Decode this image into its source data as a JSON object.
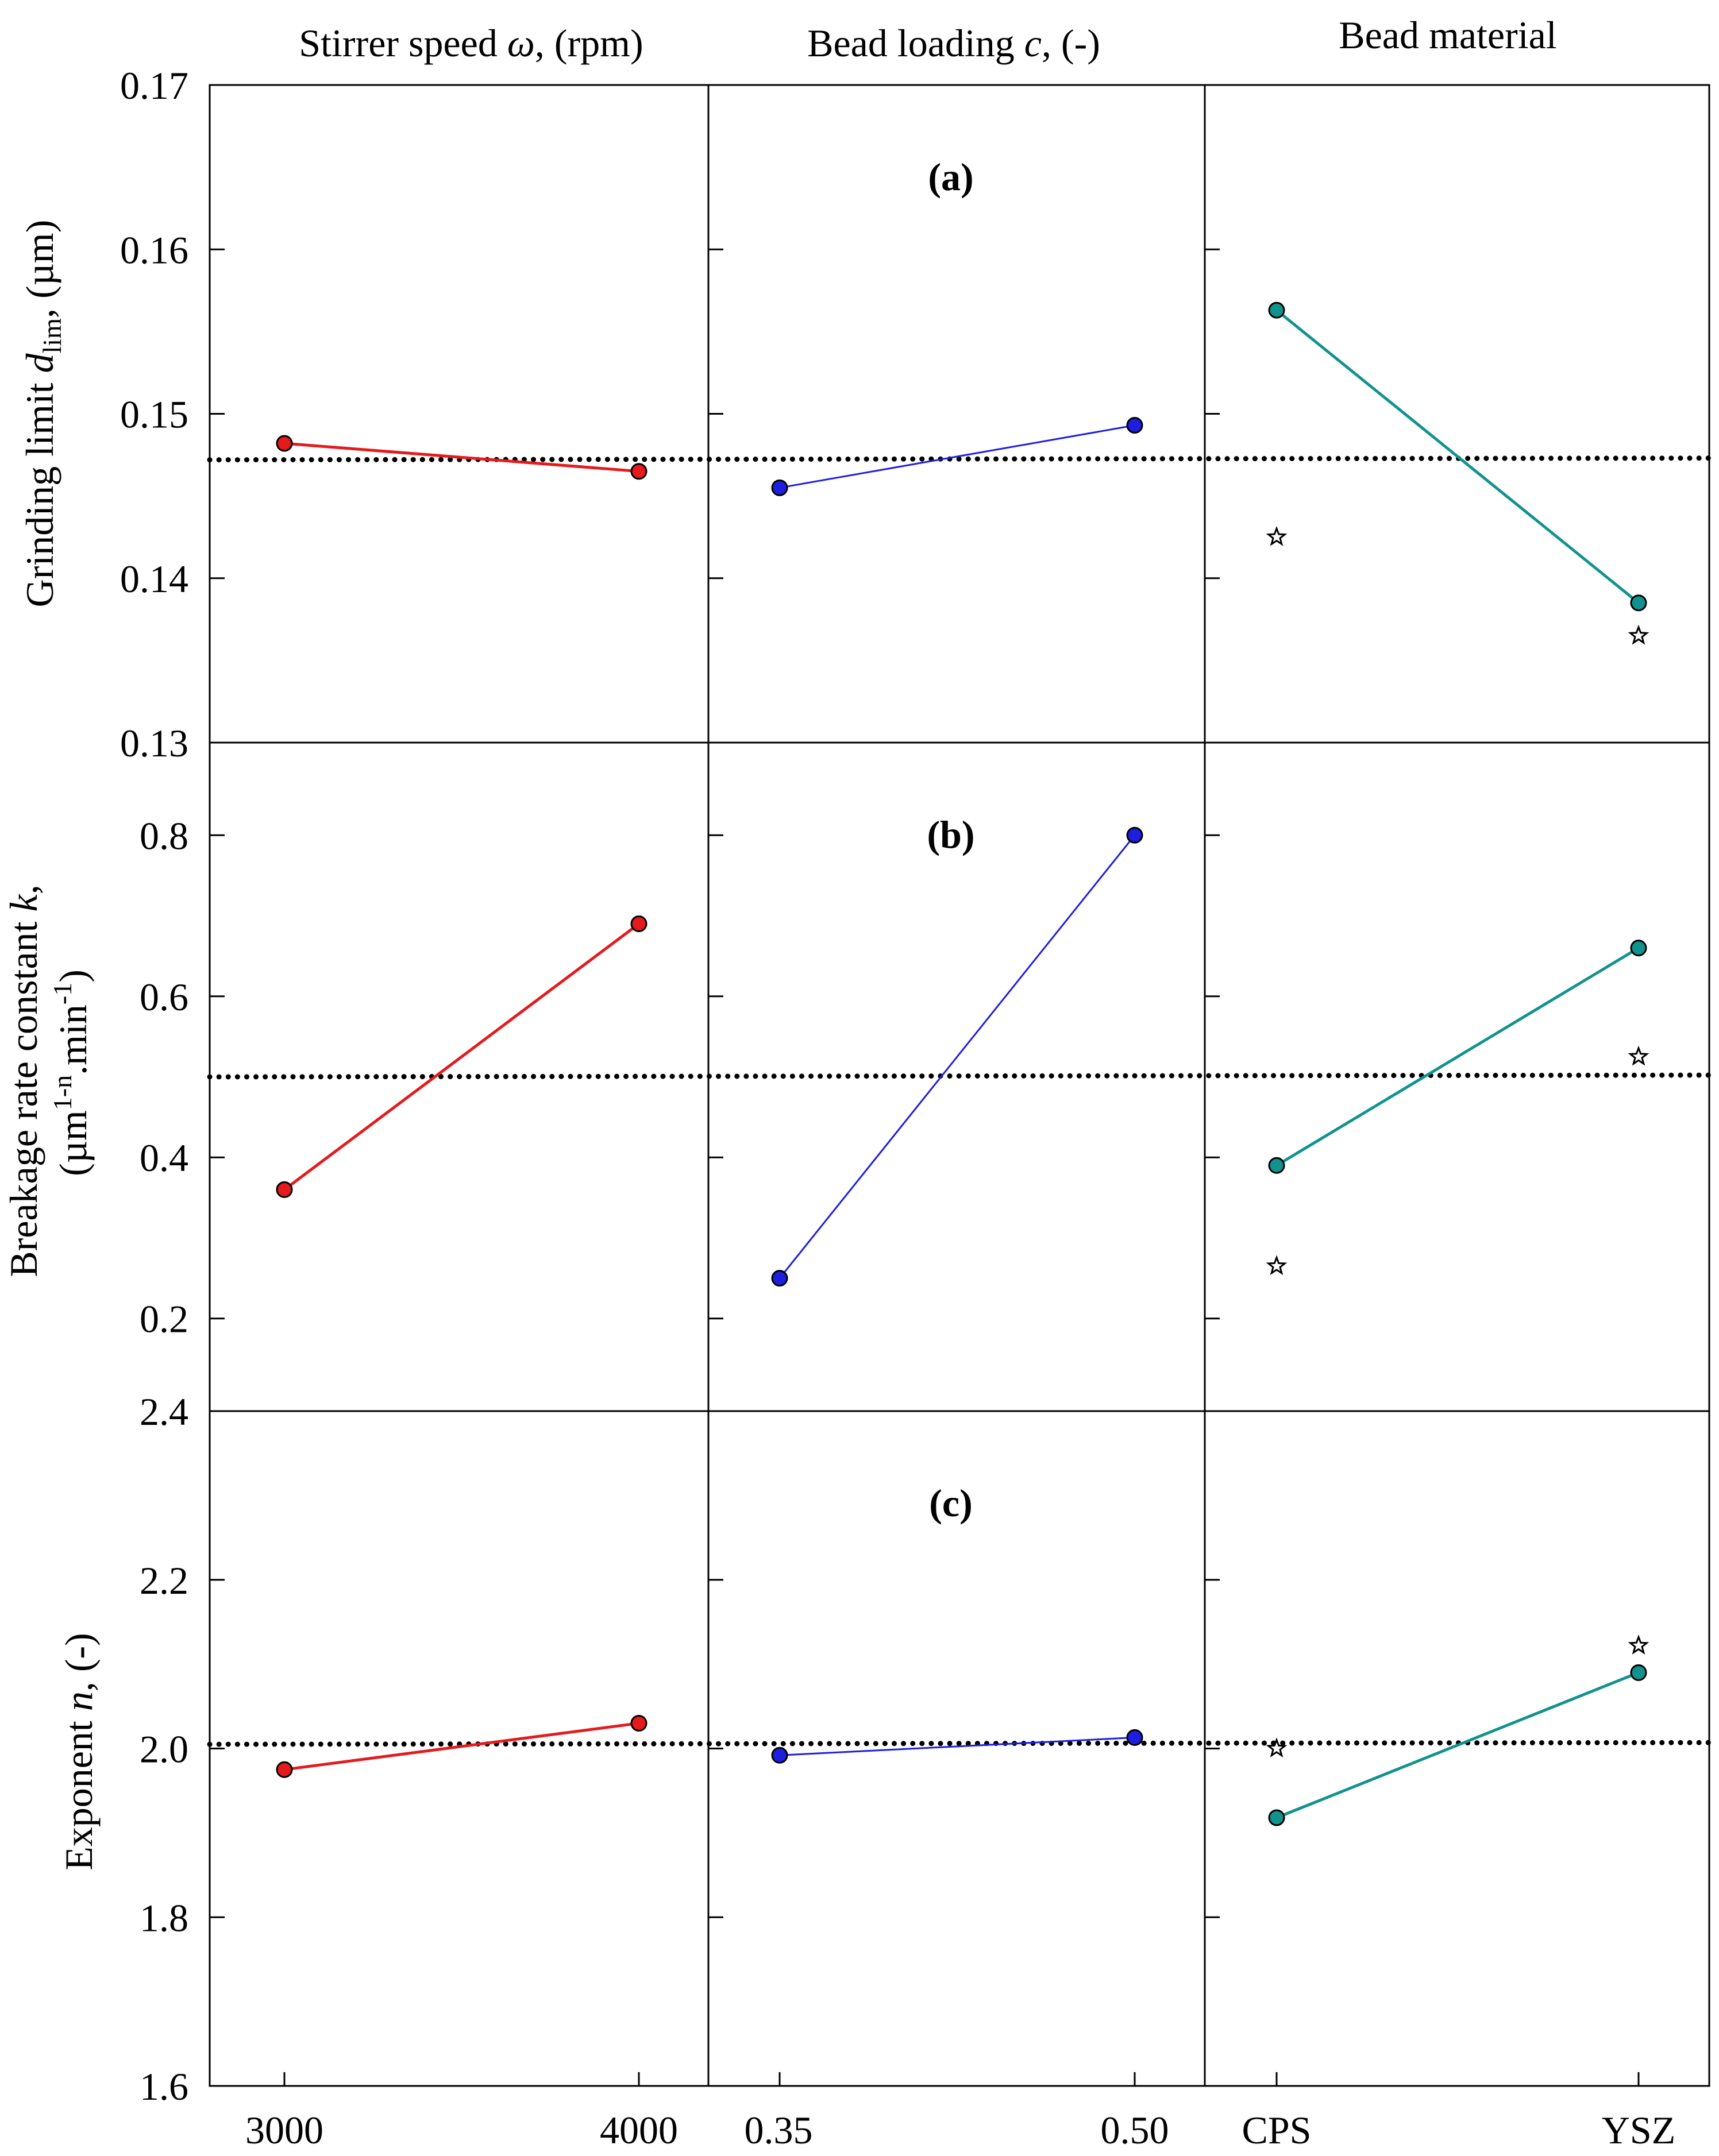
{
  "column_headers": [
    {
      "prefix": "Stirrer speed ",
      "var": "ω",
      "suffix": ", (rpm)"
    },
    {
      "prefix": "Bead loading ",
      "var": "c",
      "suffix": ", (-)"
    },
    {
      "prefix": "Bead material",
      "var": "",
      "suffix": ""
    }
  ],
  "x_tick_labels": [
    [
      "3000",
      "4000"
    ],
    [
      "0.35",
      "0.50"
    ],
    [
      "CPS",
      "YSZ"
    ]
  ],
  "row_labels": {
    "a": {
      "line1_prefix": "Grinding limit ",
      "line1_var": "d",
      "line1_sub": "lim",
      "line1_suffix": ", (µm)"
    },
    "b": {
      "line1_prefix": "Breakage rate constant ",
      "line1_var": "k",
      "line1_suffix": ",",
      "line2_a": "(µm",
      "line2_sup1": "1-n",
      "line2_b": ".min",
      "line2_sup2": "-1",
      "line2_c": ")"
    },
    "c": {
      "line1_prefix": "Exponent ",
      "line1_var": "n",
      "line1_suffix": ", (-)"
    }
  },
  "colors": {
    "stirrer": "#e41a1c",
    "loading": "#1e1ee0",
    "material": "#12928e",
    "axis": "#000000"
  },
  "chart_data": [
    {
      "type": "line",
      "panel_label": "(a)",
      "ylim": [
        0.13,
        0.17
      ],
      "yticks": [
        "0.13",
        "0.14",
        "0.15",
        "0.16",
        "0.17"
      ],
      "mean_line": 0.1472,
      "series": [
        {
          "name": "Stirrer speed",
          "categories": [
            "3000",
            "4000"
          ],
          "values": [
            0.1482,
            0.1465
          ]
        },
        {
          "name": "Bead loading",
          "categories": [
            "0.35",
            "0.50"
          ],
          "values": [
            0.1455,
            0.1493
          ]
        },
        {
          "name": "Bead material",
          "categories": [
            "CPS",
            "YSZ"
          ],
          "values": [
            0.1563,
            0.1385
          ],
          "stars": [
            0.1425,
            0.1365
          ]
        }
      ]
    },
    {
      "type": "line",
      "panel_label": "(b)",
      "ylim": [
        0.085,
        0.915
      ],
      "yticks": [
        "0.2",
        "0.4",
        "0.6",
        "0.8"
      ],
      "mean_line": 0.5,
      "series": [
        {
          "name": "Stirrer speed",
          "categories": [
            "3000",
            "4000"
          ],
          "values": [
            0.36,
            0.69
          ]
        },
        {
          "name": "Bead loading",
          "categories": [
            "0.35",
            "0.50"
          ],
          "values": [
            0.25,
            0.8
          ]
        },
        {
          "name": "Bead material",
          "categories": [
            "CPS",
            "YSZ"
          ],
          "values": [
            0.39,
            0.66
          ],
          "stars": [
            0.265,
            0.525
          ]
        }
      ]
    },
    {
      "type": "line",
      "panel_label": "(c)",
      "ylim": [
        1.6,
        2.4
      ],
      "yticks": [
        "1.6",
        "1.8",
        "2.0",
        "2.2",
        "2.4"
      ],
      "mean_line": 2.005,
      "series": [
        {
          "name": "Stirrer speed",
          "categories": [
            "3000",
            "4000"
          ],
          "values": [
            1.975,
            2.03
          ]
        },
        {
          "name": "Bead loading",
          "categories": [
            "0.35",
            "0.50"
          ],
          "values": [
            1.992,
            2.013
          ]
        },
        {
          "name": "Bead material",
          "categories": [
            "CPS",
            "YSZ"
          ],
          "values": [
            1.918,
            2.09
          ],
          "stars": [
            2.0,
            2.122
          ]
        }
      ]
    }
  ]
}
